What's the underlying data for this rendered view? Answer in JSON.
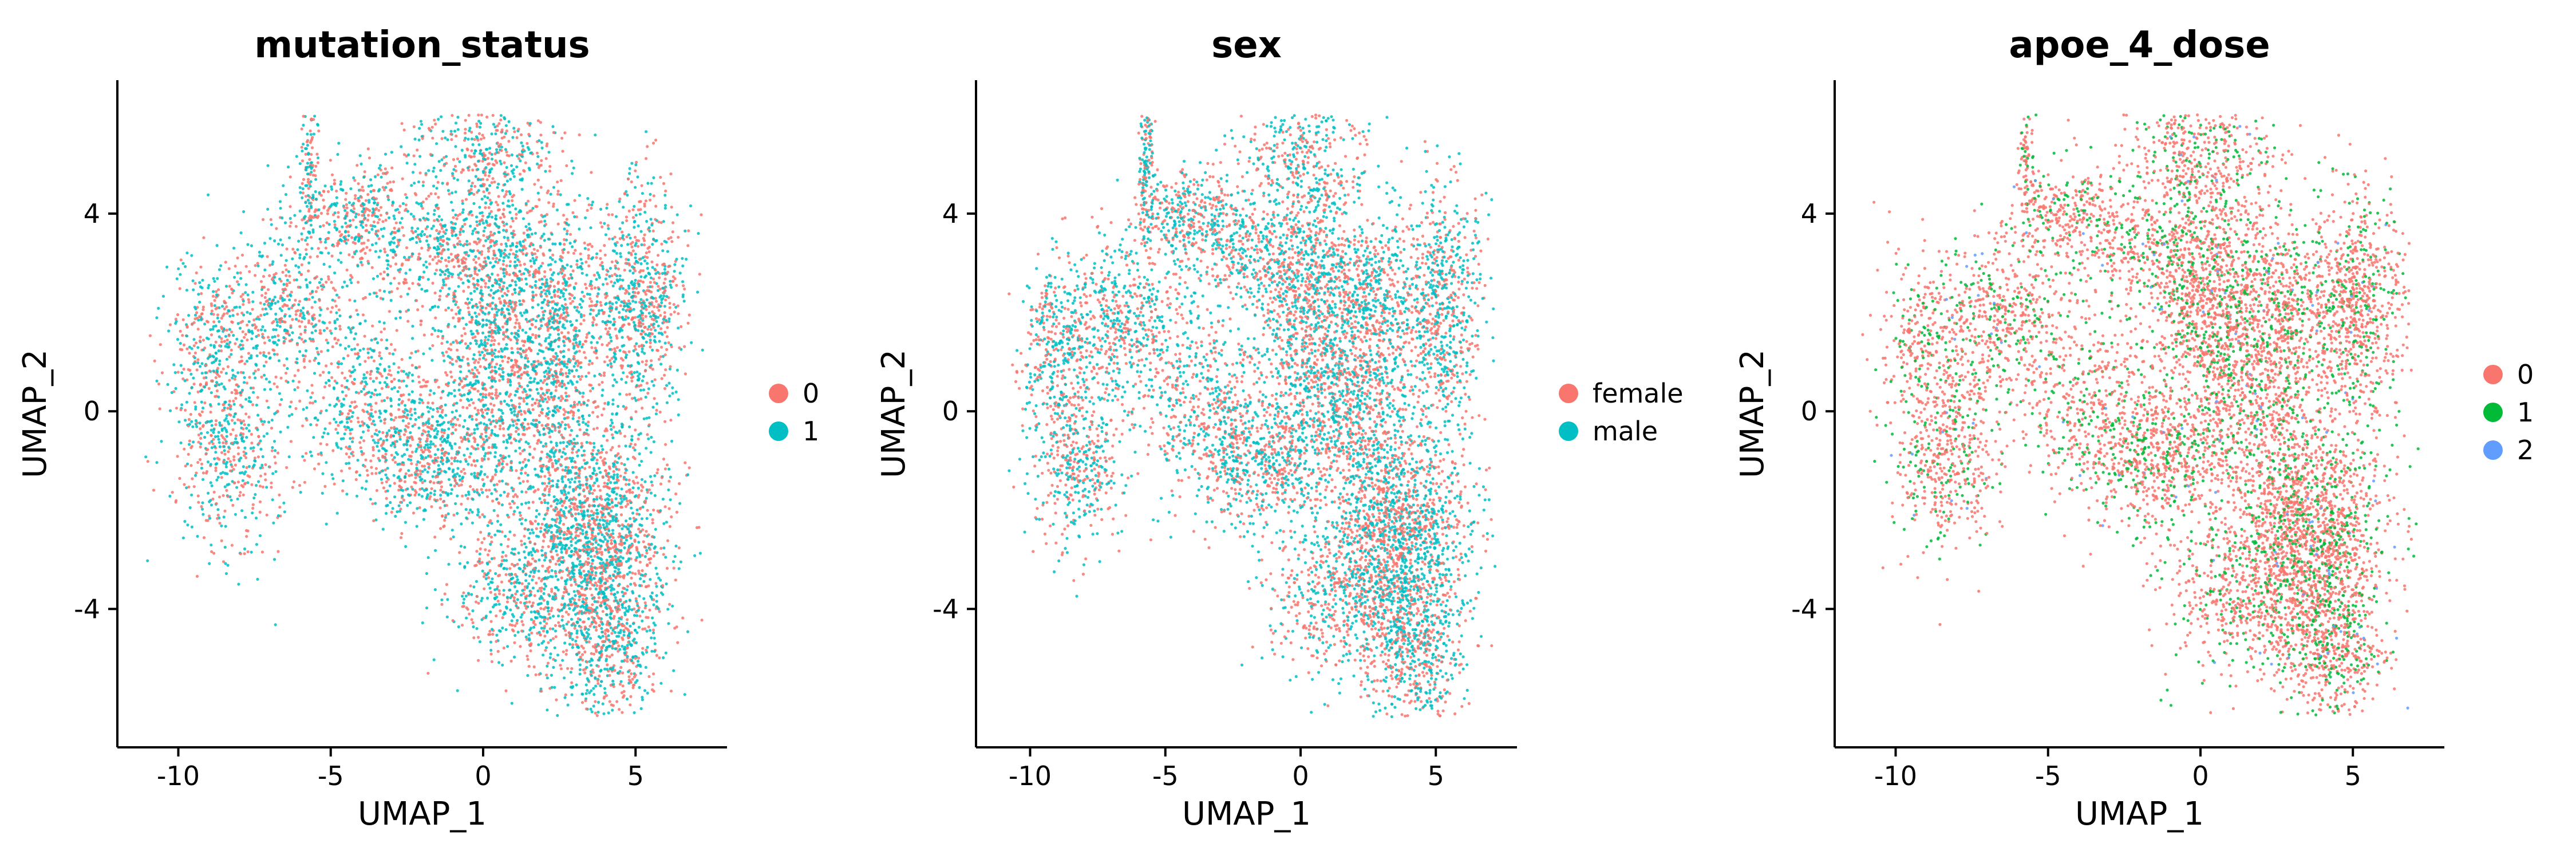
{
  "chart_data": [
    {
      "type": "scatter",
      "title": "mutation_status",
      "xlabel": "UMAP_1",
      "ylabel": "UMAP_2",
      "xlim": [
        -12,
        8
      ],
      "ylim": [
        -6.8,
        6.7
      ],
      "xticks": [
        {
          "value": -10,
          "label": "-10"
        },
        {
          "value": -5,
          "label": "-5"
        },
        {
          "value": 0,
          "label": "0"
        },
        {
          "value": 5,
          "label": "5"
        }
      ],
      "yticks": [
        {
          "value": -4,
          "label": "-4"
        },
        {
          "value": 0,
          "label": "0"
        },
        {
          "value": 4,
          "label": "4"
        }
      ],
      "grid": false,
      "legend_position": "right",
      "series": [
        {
          "name": "0",
          "color": "#F8766D"
        },
        {
          "name": "1",
          "color": "#00BFC4"
        }
      ]
    },
    {
      "type": "scatter",
      "title": "sex",
      "xlabel": "UMAP_1",
      "ylabel": "UMAP_2",
      "xlim": [
        -12,
        8
      ],
      "ylim": [
        -6.8,
        6.7
      ],
      "xticks": [
        {
          "value": -10,
          "label": "-10"
        },
        {
          "value": -5,
          "label": "-5"
        },
        {
          "value": 0,
          "label": "0"
        },
        {
          "value": 5,
          "label": "5"
        }
      ],
      "yticks": [
        {
          "value": -4,
          "label": "-4"
        },
        {
          "value": 0,
          "label": "0"
        },
        {
          "value": 4,
          "label": "4"
        }
      ],
      "grid": false,
      "legend_position": "right",
      "series": [
        {
          "name": "female",
          "color": "#F8766D"
        },
        {
          "name": "male",
          "color": "#00BFC4"
        }
      ]
    },
    {
      "type": "scatter",
      "title": "apoe_4_dose",
      "xlabel": "UMAP_1",
      "ylabel": "UMAP_2",
      "xlim": [
        -12,
        8
      ],
      "ylim": [
        -6.8,
        6.7
      ],
      "xticks": [
        {
          "value": -10,
          "label": "-10"
        },
        {
          "value": -5,
          "label": "-5"
        },
        {
          "value": 0,
          "label": "0"
        },
        {
          "value": 5,
          "label": "5"
        }
      ],
      "yticks": [
        {
          "value": -4,
          "label": "-4"
        },
        {
          "value": 0,
          "label": "0"
        },
        {
          "value": 4,
          "label": "4"
        }
      ],
      "grid": false,
      "legend_position": "right",
      "series": [
        {
          "name": "0",
          "color": "#F8766D"
        },
        {
          "name": "1",
          "color": "#00BA38"
        },
        {
          "name": "2",
          "color": "#619CFF"
        }
      ]
    }
  ]
}
